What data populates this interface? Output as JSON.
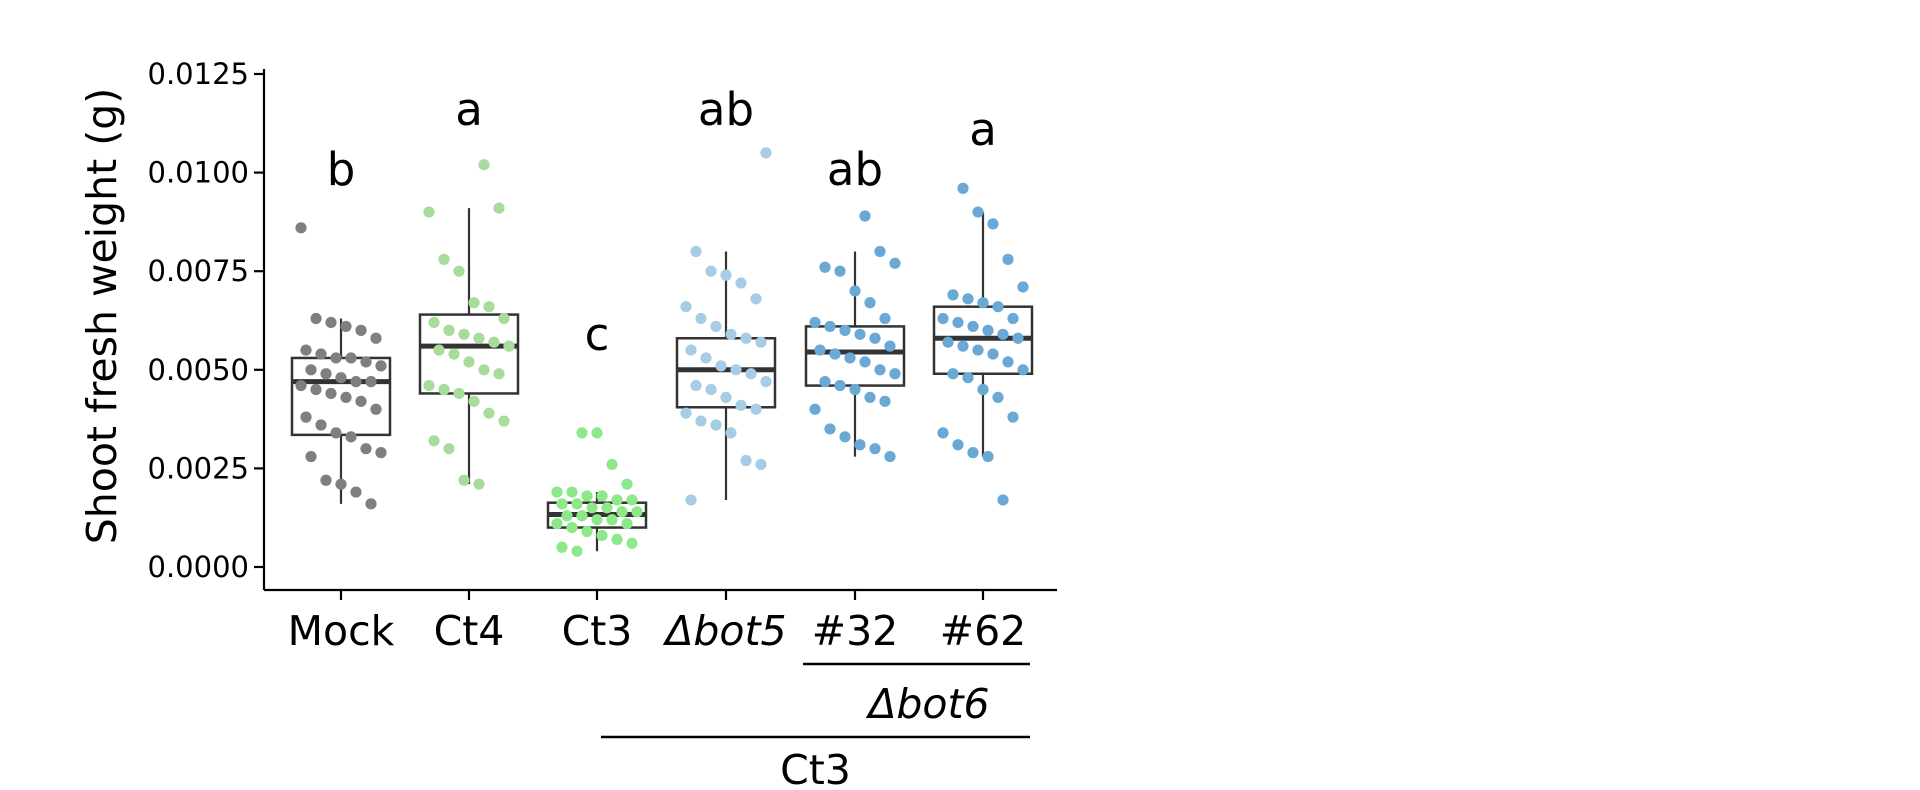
{
  "chart_data": {
    "type": "boxplot",
    "ylabel": "Shoot fresh weight (g)",
    "xlabel": "",
    "ylim": [
      0,
      0.0125
    ],
    "yticks": [
      "0.0000",
      "0.0025",
      "0.0050",
      "0.0075",
      "0.0100",
      "0.0125"
    ],
    "yticks_values": [
      0,
      0.0025,
      0.005,
      0.0075,
      0.01,
      0.0125
    ],
    "categories": [
      "Mock",
      "Ct4",
      "Ct3",
      "Δbot5",
      "#32",
      "#62"
    ],
    "italic_categories": [
      "Δbot5"
    ],
    "significance_letters": [
      "b",
      "a",
      "c",
      "ab",
      "ab",
      "a"
    ],
    "group_labels": [
      {
        "label": "Δbot6",
        "italic": true,
        "spans": [
          "#32",
          "#62"
        ]
      },
      {
        "label": "Ct3",
        "italic": false,
        "spans": [
          "Δbot5",
          "#32",
          "#62"
        ]
      }
    ],
    "colors": [
      "#7f7f7f",
      "#a8dc9c",
      "#8de88a",
      "#a6cde3",
      "#6aa8d6",
      "#6aa8d6"
    ],
    "boxes": [
      {
        "name": "Mock",
        "q1": 0.00335,
        "median": 0.0047,
        "q3": 0.0053,
        "whisker_low": 0.0016,
        "whisker_high": 0.0063
      },
      {
        "name": "Ct4",
        "q1": 0.0044,
        "median": 0.0056,
        "q3": 0.0064,
        "whisker_low": 0.0021,
        "whisker_high": 0.0091
      },
      {
        "name": "Ct3",
        "q1": 0.001,
        "median": 0.00133,
        "q3": 0.00163,
        "whisker_low": 0.0004,
        "whisker_high": 0.0019
      },
      {
        "name": "Δbot5",
        "q1": 0.00405,
        "median": 0.005,
        "q3": 0.0058,
        "whisker_low": 0.0017,
        "whisker_high": 0.008
      },
      {
        "name": "#32",
        "q1": 0.0046,
        "median": 0.00545,
        "q3": 0.0061,
        "whisker_low": 0.0028,
        "whisker_high": 0.008
      },
      {
        "name": "#62",
        "q1": 0.0049,
        "median": 0.0058,
        "q3": 0.0066,
        "whisker_low": 0.0028,
        "whisker_high": 0.009
      }
    ],
    "points": [
      [
        0.0086,
        0.0063,
        0.0062,
        0.0061,
        0.006,
        0.0058,
        0.0055,
        0.0054,
        0.0053,
        0.0053,
        0.0052,
        0.0051,
        0.005,
        0.0049,
        0.0048,
        0.0047,
        0.0047,
        0.0046,
        0.0045,
        0.0044,
        0.0043,
        0.0042,
        0.004,
        0.0038,
        0.0036,
        0.0034,
        0.0033,
        0.003,
        0.0029,
        0.0028,
        0.0022,
        0.0021,
        0.0019,
        0.0016
      ],
      [
        0.0102,
        0.0091,
        0.009,
        0.0078,
        0.0075,
        0.0067,
        0.0066,
        0.0063,
        0.0062,
        0.006,
        0.0059,
        0.0058,
        0.0057,
        0.0056,
        0.0055,
        0.0054,
        0.0052,
        0.005,
        0.0049,
        0.0046,
        0.0045,
        0.0044,
        0.0042,
        0.0039,
        0.0037,
        0.0032,
        0.003,
        0.0022,
        0.0021
      ],
      [
        0.0034,
        0.0034,
        0.0026,
        0.0021,
        0.0019,
        0.0019,
        0.0018,
        0.0018,
        0.0017,
        0.0017,
        0.0016,
        0.0016,
        0.0015,
        0.0015,
        0.0014,
        0.0014,
        0.0013,
        0.0013,
        0.0012,
        0.0012,
        0.0011,
        0.0011,
        0.001,
        0.0009,
        0.0008,
        0.0007,
        0.0006,
        0.0005,
        0.0004
      ],
      [
        0.0105,
        0.008,
        0.0075,
        0.0074,
        0.0072,
        0.0068,
        0.0066,
        0.0063,
        0.0061,
        0.0059,
        0.0058,
        0.0057,
        0.0055,
        0.0053,
        0.0051,
        0.005,
        0.0049,
        0.0047,
        0.0046,
        0.0045,
        0.0043,
        0.0041,
        0.004,
        0.0039,
        0.0037,
        0.0036,
        0.0034,
        0.0027,
        0.0026,
        0.0017
      ],
      [
        0.0089,
        0.008,
        0.0077,
        0.0076,
        0.0075,
        0.007,
        0.0067,
        0.0063,
        0.0062,
        0.0061,
        0.006,
        0.0059,
        0.0058,
        0.0056,
        0.0055,
        0.0054,
        0.0053,
        0.0052,
        0.005,
        0.0049,
        0.0047,
        0.0046,
        0.0045,
        0.0043,
        0.0042,
        0.004,
        0.0035,
        0.0033,
        0.0031,
        0.003,
        0.0028
      ],
      [
        0.0096,
        0.009,
        0.0087,
        0.0078,
        0.0071,
        0.0069,
        0.0068,
        0.0067,
        0.0066,
        0.0063,
        0.0063,
        0.0062,
        0.0061,
        0.006,
        0.0059,
        0.0058,
        0.0057,
        0.0056,
        0.0055,
        0.0054,
        0.0052,
        0.005,
        0.0049,
        0.0048,
        0.0045,
        0.0043,
        0.0038,
        0.0034,
        0.0031,
        0.0029,
        0.0028,
        0.0017
      ]
    ]
  }
}
